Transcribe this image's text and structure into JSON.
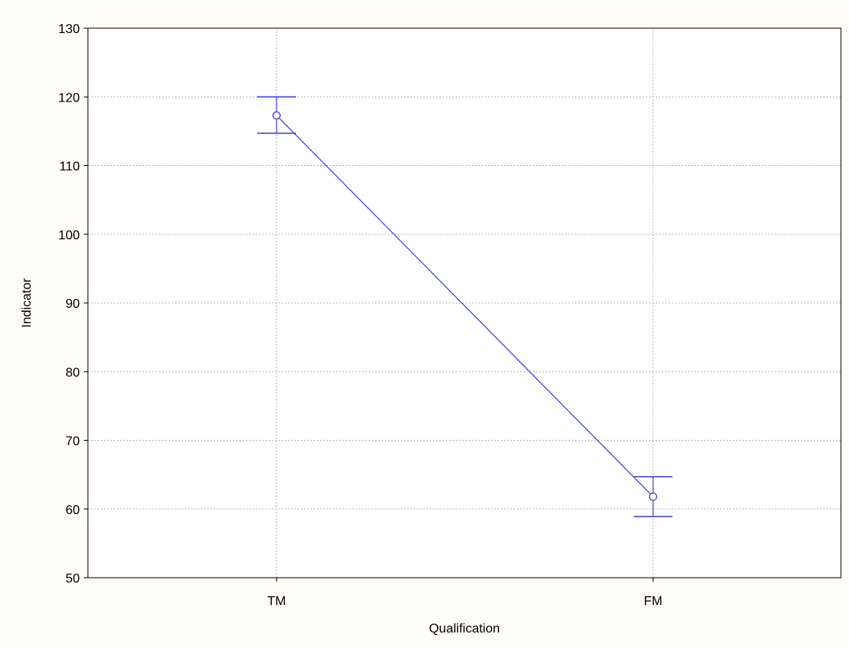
{
  "chart_data": {
    "type": "line",
    "categories": [
      "TM",
      "FM"
    ],
    "series": [
      {
        "values": [
          117.3,
          61.8
        ],
        "error_upper": [
          120.0,
          64.7
        ],
        "error_lower": [
          114.7,
          58.9
        ],
        "color": "#3f3fdf"
      }
    ],
    "xlabel": "Qualification",
    "ylabel": "Indicator",
    "ylim": [
      50,
      130
    ],
    "yticks": [
      "50",
      "60",
      "70",
      "80",
      "90",
      "100",
      "110",
      "120",
      "130"
    ],
    "grid": true,
    "colors": {
      "background": "#fffdf6",
      "plot_background": "#ffffff",
      "grid": "#b8b8b8",
      "axis": "#000000",
      "series": "#3f3fdf"
    }
  }
}
